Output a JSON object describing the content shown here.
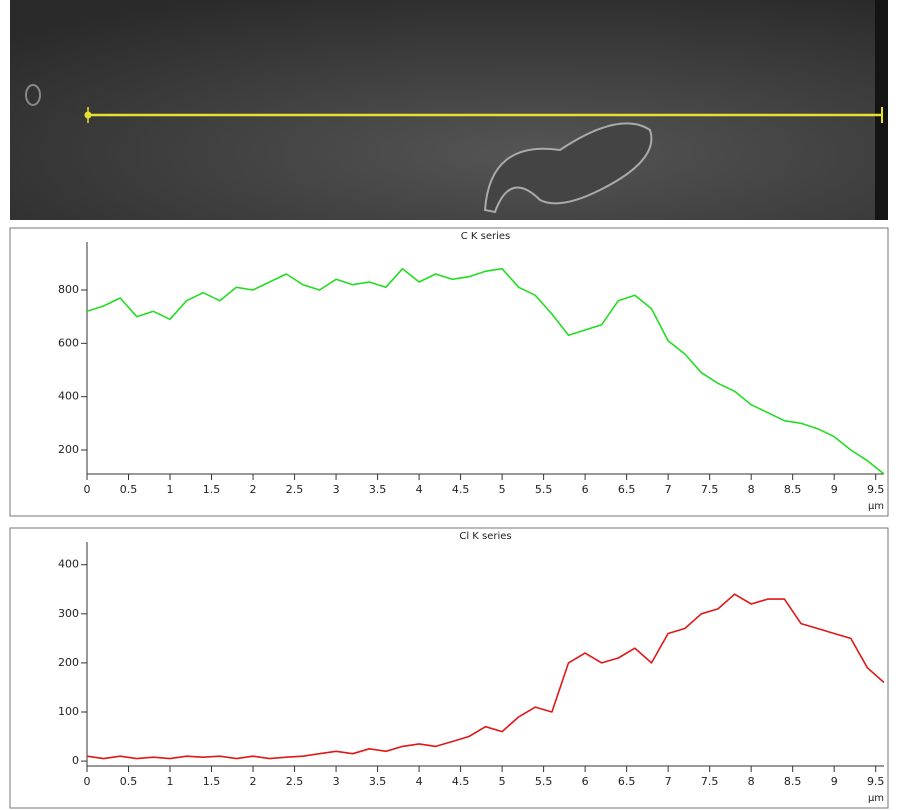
{
  "chart_data": [
    {
      "type": "line",
      "title": "C K series",
      "x_label": "µm",
      "color": "#22dd22",
      "x": [
        0,
        0.2,
        0.4,
        0.6,
        0.8,
        1,
        1.2,
        1.4,
        1.6,
        1.8,
        2,
        2.2,
        2.4,
        2.6,
        2.8,
        3,
        3.2,
        3.4,
        3.6,
        3.8,
        4,
        4.2,
        4.4,
        4.6,
        4.8,
        5,
        5.2,
        5.4,
        5.6,
        5.8,
        6,
        6.2,
        6.4,
        6.6,
        6.8,
        7,
        7.2,
        7.4,
        7.6,
        7.8,
        8,
        8.2,
        8.4,
        8.6,
        8.8,
        9,
        9.2,
        9.4,
        9.6
      ],
      "values": [
        720,
        740,
        770,
        700,
        720,
        690,
        760,
        790,
        760,
        810,
        800,
        830,
        860,
        820,
        800,
        840,
        820,
        830,
        810,
        880,
        830,
        860,
        840,
        850,
        870,
        880,
        810,
        780,
        710,
        630,
        650,
        670,
        760,
        780,
        730,
        610,
        560,
        490,
        450,
        420,
        370,
        340,
        310,
        300,
        280,
        250,
        200,
        160,
        110
      ],
      "xlim": [
        0,
        9.6
      ],
      "xticks": [
        0,
        0.5,
        1,
        1.5,
        2,
        2.5,
        3,
        3.5,
        4,
        4.5,
        5,
        5.5,
        6,
        6.5,
        7,
        7.5,
        8,
        8.5,
        9,
        9.5
      ],
      "ylim": [
        110,
        950
      ],
      "yticks": [
        200,
        400,
        600,
        800
      ]
    },
    {
      "type": "line",
      "title": "Cl K series",
      "x_label": "µm",
      "color": "#e01818",
      "x": [
        0,
        0.2,
        0.4,
        0.6,
        0.8,
        1,
        1.2,
        1.4,
        1.6,
        1.8,
        2,
        2.2,
        2.4,
        2.6,
        2.8,
        3,
        3.2,
        3.4,
        3.6,
        3.8,
        4,
        4.2,
        4.4,
        4.6,
        4.8,
        5,
        5.2,
        5.4,
        5.6,
        5.8,
        6,
        6.2,
        6.4,
        6.6,
        6.8,
        7,
        7.2,
        7.4,
        7.6,
        7.8,
        8,
        8.2,
        8.4,
        8.6,
        8.8,
        9,
        9.2,
        9.4,
        9.6
      ],
      "values": [
        10,
        5,
        10,
        5,
        8,
        5,
        10,
        8,
        10,
        5,
        10,
        5,
        8,
        10,
        15,
        20,
        15,
        25,
        20,
        30,
        35,
        30,
        40,
        50,
        70,
        60,
        90,
        110,
        100,
        200,
        220,
        200,
        210,
        230,
        200,
        260,
        270,
        300,
        310,
        340,
        320,
        330,
        330,
        280,
        270,
        260,
        250,
        190,
        160
      ],
      "xlim": [
        0,
        9.6
      ],
      "xticks": [
        0,
        0.5,
        1,
        1.5,
        2,
        2.5,
        3,
        3.5,
        4,
        4.5,
        5,
        5.5,
        6,
        6.5,
        7,
        7.5,
        8,
        8.5,
        9,
        9.5
      ],
      "ylim": [
        -10,
        430
      ],
      "yticks": [
        0,
        100,
        200,
        300,
        400
      ]
    }
  ]
}
